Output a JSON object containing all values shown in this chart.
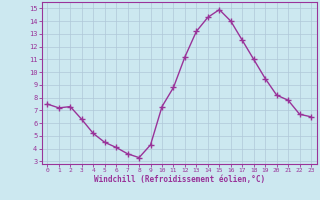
{
  "x": [
    0,
    1,
    2,
    3,
    4,
    5,
    6,
    7,
    8,
    9,
    10,
    11,
    12,
    13,
    14,
    15,
    16,
    17,
    18,
    19,
    20,
    21,
    22,
    23
  ],
  "y": [
    7.5,
    7.2,
    7.3,
    6.3,
    5.2,
    4.5,
    4.1,
    3.6,
    3.3,
    4.3,
    7.3,
    8.8,
    11.2,
    13.2,
    14.3,
    14.9,
    14.0,
    12.5,
    11.0,
    9.5,
    8.2,
    7.8,
    6.7,
    6.5
  ],
  "line_color": "#993399",
  "marker": "+",
  "marker_size": 4,
  "bg_color": "#cce8f0",
  "grid_color": "#b0c8d8",
  "xlim": [
    -0.5,
    23.5
  ],
  "ylim": [
    2.8,
    15.5
  ],
  "yticks": [
    3,
    4,
    5,
    6,
    7,
    8,
    9,
    10,
    11,
    12,
    13,
    14,
    15
  ],
  "xticks": [
    0,
    1,
    2,
    3,
    4,
    5,
    6,
    7,
    8,
    9,
    10,
    11,
    12,
    13,
    14,
    15,
    16,
    17,
    18,
    19,
    20,
    21,
    22,
    23
  ],
  "xlabel": "Windchill (Refroidissement éolien,°C)",
  "xlabel_color": "#993399",
  "tick_color": "#993399",
  "axis_color": "#993399",
  "line_width": 1.0
}
